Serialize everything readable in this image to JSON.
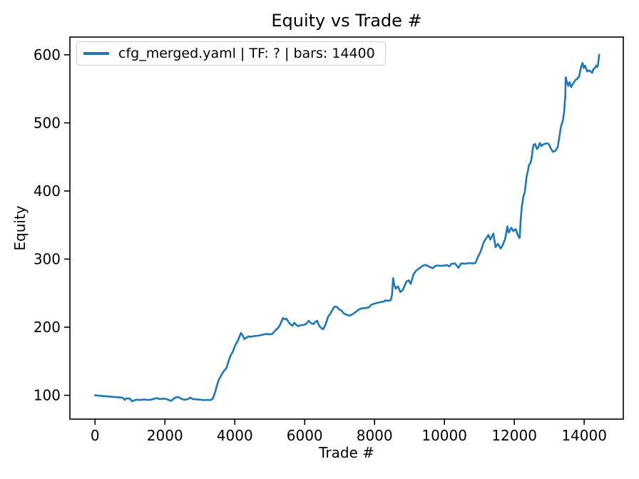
{
  "figure": {
    "title": "Equity vs Trade #",
    "x_axis_label": "Trade #",
    "y_axis_label": "Equity"
  },
  "legend": {
    "label": "cfg_merged.yaml | TF: ? | bars: 14400"
  },
  "colors": {
    "line": "#1f77b4",
    "spine": "#000000",
    "text": "#000000",
    "legend_border": "#cccccc",
    "background": "#ffffff"
  },
  "chart_data": {
    "type": "line",
    "title": "Equity vs Trade #",
    "xlabel": "Trade #",
    "ylabel": "Equity",
    "legend_position": "upper left",
    "grid": false,
    "xlim": [
      -720,
      15120
    ],
    "ylim": [
      65,
      626
    ],
    "x_ticks": [
      0,
      2000,
      4000,
      6000,
      8000,
      10000,
      12000,
      14000
    ],
    "y_ticks": [
      100,
      200,
      300,
      400,
      500,
      600
    ],
    "series": [
      {
        "name": "cfg_merged.yaml | TF: ? | bars: 14400",
        "color": "#1f77b4",
        "points": [
          [
            0,
            100
          ],
          [
            120,
            99.3
          ],
          [
            250,
            98.8
          ],
          [
            400,
            98.2
          ],
          [
            550,
            97.6
          ],
          [
            700,
            97
          ],
          [
            800,
            96.3
          ],
          [
            845,
            93.2
          ],
          [
            900,
            95.6
          ],
          [
            1000,
            95
          ],
          [
            1060,
            91
          ],
          [
            1120,
            92.6
          ],
          [
            1200,
            93.6
          ],
          [
            1300,
            93
          ],
          [
            1400,
            93.9
          ],
          [
            1500,
            93.2
          ],
          [
            1600,
            93.6
          ],
          [
            1700,
            95
          ],
          [
            1770,
            95.9
          ],
          [
            1850,
            94.4
          ],
          [
            1950,
            95.1
          ],
          [
            2050,
            94.4
          ],
          [
            2175,
            91.8
          ],
          [
            2230,
            94
          ],
          [
            2290,
            96.6
          ],
          [
            2380,
            97.6
          ],
          [
            2450,
            95.4
          ],
          [
            2550,
            93.4
          ],
          [
            2650,
            94.1
          ],
          [
            2725,
            96.6
          ],
          [
            2800,
            94.4
          ],
          [
            2900,
            94
          ],
          [
            2990,
            93.7
          ],
          [
            3100,
            92.9
          ],
          [
            3200,
            93.3
          ],
          [
            3300,
            92.9
          ],
          [
            3360,
            94.5
          ],
          [
            3400,
            99
          ],
          [
            3440,
            105
          ],
          [
            3470,
            111
          ],
          [
            3500,
            116
          ],
          [
            3530,
            121
          ],
          [
            3560,
            125
          ],
          [
            3600,
            128
          ],
          [
            3650,
            133
          ],
          [
            3700,
            136.5
          ],
          [
            3740,
            138.5
          ],
          [
            3780,
            143
          ],
          [
            3820,
            150
          ],
          [
            3860,
            156
          ],
          [
            3900,
            160.5
          ],
          [
            3940,
            163.5
          ],
          [
            3970,
            168
          ],
          [
            4000,
            172
          ],
          [
            4040,
            176
          ],
          [
            4070,
            178.5
          ],
          [
            4110,
            183
          ],
          [
            4140,
            187
          ],
          [
            4175,
            191.5
          ],
          [
            4225,
            188
          ],
          [
            4275,
            182.5
          ],
          [
            4330,
            184.5
          ],
          [
            4380,
            186.5
          ],
          [
            4460,
            186
          ],
          [
            4560,
            187
          ],
          [
            4660,
            187.5
          ],
          [
            4760,
            188.5
          ],
          [
            4840,
            189.5
          ],
          [
            4920,
            190
          ],
          [
            5010,
            189.4
          ],
          [
            5070,
            190
          ],
          [
            5120,
            193
          ],
          [
            5195,
            197
          ],
          [
            5250,
            199.5
          ],
          [
            5300,
            204
          ],
          [
            5340,
            209
          ],
          [
            5380,
            213.5
          ],
          [
            5430,
            211.5
          ],
          [
            5480,
            212.5
          ],
          [
            5545,
            207
          ],
          [
            5600,
            204
          ],
          [
            5650,
            202
          ],
          [
            5700,
            206.5
          ],
          [
            5760,
            203.5
          ],
          [
            5810,
            201.5
          ],
          [
            5865,
            202.6
          ],
          [
            5920,
            203
          ],
          [
            5990,
            203.6
          ],
          [
            6050,
            205
          ],
          [
            6115,
            209.5
          ],
          [
            6180,
            206
          ],
          [
            6250,
            204.5
          ],
          [
            6300,
            207.5
          ],
          [
            6355,
            209.5
          ],
          [
            6420,
            201.5
          ],
          [
            6480,
            198.5
          ],
          [
            6530,
            197
          ],
          [
            6580,
            202
          ],
          [
            6625,
            208
          ],
          [
            6670,
            215.5
          ],
          [
            6725,
            219
          ],
          [
            6780,
            224
          ],
          [
            6835,
            229
          ],
          [
            6885,
            230.5
          ],
          [
            6935,
            229
          ],
          [
            6990,
            226
          ],
          [
            7050,
            224.5
          ],
          [
            7125,
            220
          ],
          [
            7215,
            218
          ],
          [
            7285,
            217
          ],
          [
            7345,
            218.2
          ],
          [
            7410,
            220.5
          ],
          [
            7480,
            223
          ],
          [
            7550,
            226
          ],
          [
            7625,
            227.5
          ],
          [
            7705,
            228
          ],
          [
            7785,
            228.6
          ],
          [
            7835,
            229
          ],
          [
            7895,
            232.5
          ],
          [
            7960,
            234
          ],
          [
            8060,
            235.5
          ],
          [
            8160,
            236.6
          ],
          [
            8255,
            237.5
          ],
          [
            8310,
            239.5
          ],
          [
            8370,
            238.6
          ],
          [
            8465,
            239.8
          ],
          [
            8500,
            248
          ],
          [
            8530,
            272
          ],
          [
            8560,
            263
          ],
          [
            8605,
            256.5
          ],
          [
            8672,
            260
          ],
          [
            8740,
            251.5
          ],
          [
            8810,
            254.8
          ],
          [
            8910,
            267
          ],
          [
            8980,
            268.8
          ],
          [
            9035,
            263.5
          ],
          [
            9115,
            277.5
          ],
          [
            9185,
            282.7
          ],
          [
            9255,
            285.5
          ],
          [
            9385,
            290.3
          ],
          [
            9460,
            291.5
          ],
          [
            9550,
            289.2
          ],
          [
            9620,
            287.6
          ],
          [
            9668,
            286.6
          ],
          [
            9730,
            289.6
          ],
          [
            9800,
            290.6
          ],
          [
            9900,
            290
          ],
          [
            10000,
            290.6
          ],
          [
            10075,
            291.2
          ],
          [
            10140,
            289.2
          ],
          [
            10200,
            293
          ],
          [
            10300,
            293.6
          ],
          [
            10400,
            287.2
          ],
          [
            10480,
            293.6
          ],
          [
            10600,
            293.2
          ],
          [
            10700,
            294.2
          ],
          [
            10800,
            293.6
          ],
          [
            10890,
            294.4
          ],
          [
            10955,
            303
          ],
          [
            11015,
            308.6
          ],
          [
            11070,
            316
          ],
          [
            11120,
            324.5
          ],
          [
            11190,
            330
          ],
          [
            11260,
            335.5
          ],
          [
            11315,
            328.5
          ],
          [
            11400,
            337.5
          ],
          [
            11465,
            317.5
          ],
          [
            11530,
            322.5
          ],
          [
            11610,
            315.5
          ],
          [
            11680,
            322
          ],
          [
            11740,
            330
          ],
          [
            11800,
            348
          ],
          [
            11840,
            339
          ],
          [
            11915,
            346
          ],
          [
            11970,
            341
          ],
          [
            12040,
            344
          ],
          [
            12090,
            336.5
          ],
          [
            12125,
            332.5
          ],
          [
            12155,
            331
          ],
          [
            12180,
            356
          ],
          [
            12215,
            377
          ],
          [
            12260,
            392
          ],
          [
            12300,
            398
          ],
          [
            12330,
            411
          ],
          [
            12350,
            421
          ],
          [
            12390,
            430
          ],
          [
            12420,
            438
          ],
          [
            12460,
            440.5
          ],
          [
            12490,
            447
          ],
          [
            12520,
            458
          ],
          [
            12550,
            467.5
          ],
          [
            12595,
            469
          ],
          [
            12650,
            461.5
          ],
          [
            12695,
            465
          ],
          [
            12730,
            470.5
          ],
          [
            12775,
            466
          ],
          [
            12815,
            468
          ],
          [
            12860,
            469
          ],
          [
            12935,
            470
          ],
          [
            12995,
            468.6
          ],
          [
            13035,
            463
          ],
          [
            13105,
            457.5
          ],
          [
            13175,
            459
          ],
          [
            13240,
            464
          ],
          [
            13285,
            478
          ],
          [
            13335,
            495
          ],
          [
            13365,
            499
          ],
          [
            13395,
            504.5
          ],
          [
            13425,
            516
          ],
          [
            13445,
            530
          ],
          [
            13460,
            539
          ],
          [
            13470,
            567
          ],
          [
            13505,
            560
          ],
          [
            13545,
            554.5
          ],
          [
            13585,
            560
          ],
          [
            13625,
            552.6
          ],
          [
            13685,
            558
          ],
          [
            13750,
            563
          ],
          [
            13805,
            565
          ],
          [
            13855,
            568
          ],
          [
            13920,
            584
          ],
          [
            13955,
            588
          ],
          [
            13985,
            580.6
          ],
          [
            14025,
            584
          ],
          [
            14085,
            575.5
          ],
          [
            14145,
            577
          ],
          [
            14195,
            575
          ],
          [
            14230,
            573.6
          ],
          [
            14265,
            579
          ],
          [
            14305,
            580.6
          ],
          [
            14345,
            584
          ],
          [
            14375,
            582
          ],
          [
            14395,
            585
          ],
          [
            14415,
            594
          ],
          [
            14430,
            600
          ]
        ]
      }
    ]
  }
}
